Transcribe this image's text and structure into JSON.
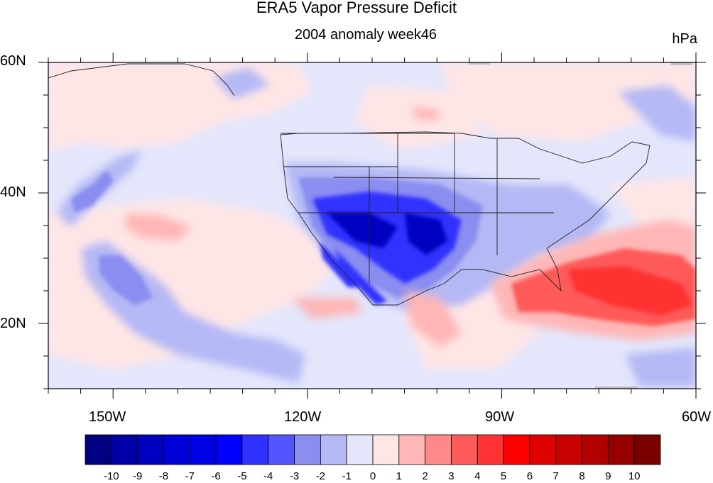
{
  "title": "ERA5 Vapor Pressure Deficit",
  "subtitle": "2004 anomaly week46",
  "units": "hPa",
  "lat_labels": [
    "60N",
    "40N",
    "20N"
  ],
  "lon_labels": [
    "150W",
    "120W",
    "90W",
    "60W"
  ],
  "colorbar": {
    "labels": [
      "-10",
      "-9",
      "-8",
      "-7",
      "-6",
      "-5",
      "-4",
      "-3",
      "-2",
      "-1",
      "0",
      "1",
      "2",
      "3",
      "4",
      "5",
      "6",
      "7",
      "8",
      "9",
      "10"
    ],
    "colors": [
      "#000080",
      "#0000a6",
      "#0000c0",
      "#0000d8",
      "#0000e6",
      "#0000ff",
      "#3030ff",
      "#5555ff",
      "#8a8ef0",
      "#b4b8f5",
      "#e4e6fb",
      "#ffe6e6",
      "#ffb6b6",
      "#ff8888",
      "#ff5a5a",
      "#ff3333",
      "#ff0000",
      "#e00000",
      "#c80000",
      "#b00000",
      "#960000",
      "#7a0000"
    ]
  },
  "map_extent": {
    "lon": [
      -160,
      -60
    ],
    "lat": [
      10,
      60
    ]
  }
}
